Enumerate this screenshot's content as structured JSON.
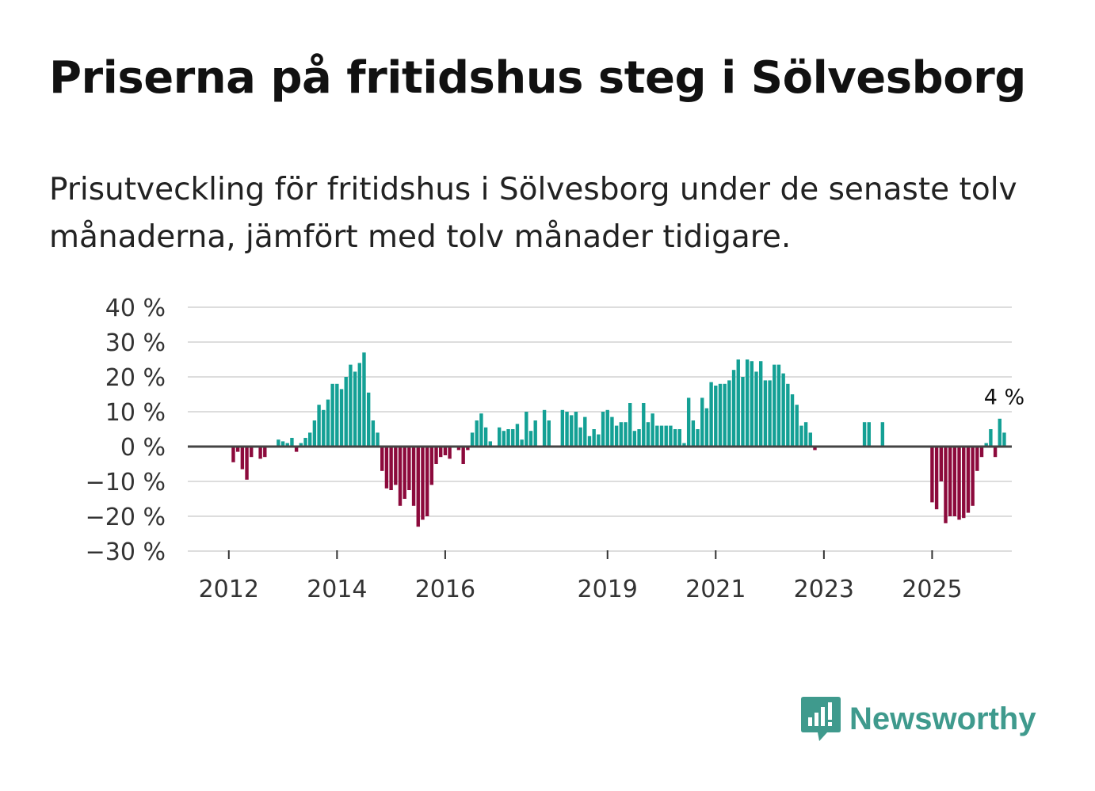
{
  "header": {
    "title": "Priserna på fritidshus steg i Sölvesborg",
    "subtitle": "Prisutveckling för fritidshus i Sölvesborg under de senaste tolv månaderna, jämfört med tolv månader tidigare."
  },
  "brand": {
    "name": "Newsworthy",
    "color": "#3f9a8d",
    "icon": "newsworthy-logo-icon"
  },
  "chart_data": {
    "type": "bar",
    "title": "Priserna på fritidshus steg i Sölvesborg",
    "xlabel": "",
    "ylabel": "",
    "ylim": [
      -30,
      40
    ],
    "y_ticks": [
      40,
      30,
      20,
      10,
      0,
      -10,
      -20,
      -30
    ],
    "y_tick_labels": [
      "40 %",
      "30 %",
      "20 %",
      "10 %",
      "0 %",
      "−10 %",
      "−20 %",
      "−30 %"
    ],
    "x_ticks": [
      "2012",
      "2014",
      "2016",
      "2019",
      "2021",
      "2023",
      "2025"
    ],
    "x_tick_month_index": [
      12,
      36,
      60,
      96,
      120,
      144,
      168
    ],
    "start": "2011-01",
    "frequency": "monthly",
    "positive_color": "#14a095",
    "negative_color": "#8c0a3c",
    "annotation": {
      "label": "4 %",
      "value": 4
    },
    "values": [
      null,
      null,
      null,
      null,
      null,
      null,
      null,
      null,
      null,
      null,
      null,
      null,
      null,
      -4.5,
      -1.5,
      -6.5,
      -9.5,
      -3,
      null,
      -3.5,
      -3,
      null,
      null,
      2,
      1.5,
      1,
      2.5,
      -1.5,
      1,
      2.5,
      4,
      7.5,
      12,
      10.5,
      13.5,
      18,
      18,
      16.5,
      20,
      23.5,
      21.5,
      24,
      27,
      15.5,
      7.5,
      4,
      -7,
      -12,
      -12.5,
      -11,
      -17,
      -15,
      -12.5,
      -17,
      -23,
      -21,
      -20,
      -11,
      -5,
      -3,
      -2.5,
      -3.5,
      null,
      -1,
      -5,
      -1,
      4,
      7.5,
      9.5,
      5.5,
      1.5,
      null,
      5.5,
      4.5,
      5,
      5,
      6.5,
      2,
      10,
      4.5,
      7.5,
      null,
      10.5,
      7.5,
      null,
      null,
      10.5,
      10,
      9,
      10,
      5.5,
      8.5,
      3,
      5,
      3.5,
      10,
      10.5,
      8.5,
      6,
      7,
      7,
      12.5,
      4.5,
      5,
      12.5,
      7,
      9.5,
      6,
      6,
      6,
      6,
      5,
      5,
      1,
      14,
      7.5,
      5,
      14,
      11,
      18.5,
      17.5,
      18,
      18,
      19,
      22,
      25,
      20,
      25,
      24.5,
      21.5,
      24.5,
      19,
      19,
      23.5,
      23.5,
      21,
      18,
      15,
      12,
      6,
      7,
      4,
      -1,
      null,
      null,
      null,
      null,
      null,
      null,
      null,
      null,
      null,
      null,
      7,
      7,
      null,
      null,
      7,
      null,
      null,
      null,
      null,
      null,
      null,
      null,
      null,
      null,
      null,
      -16,
      -18,
      -10,
      -22,
      -20,
      -20,
      -21,
      -20.5,
      -19,
      -17,
      -7,
      -3,
      1,
      5,
      -3,
      8,
      4
    ]
  }
}
